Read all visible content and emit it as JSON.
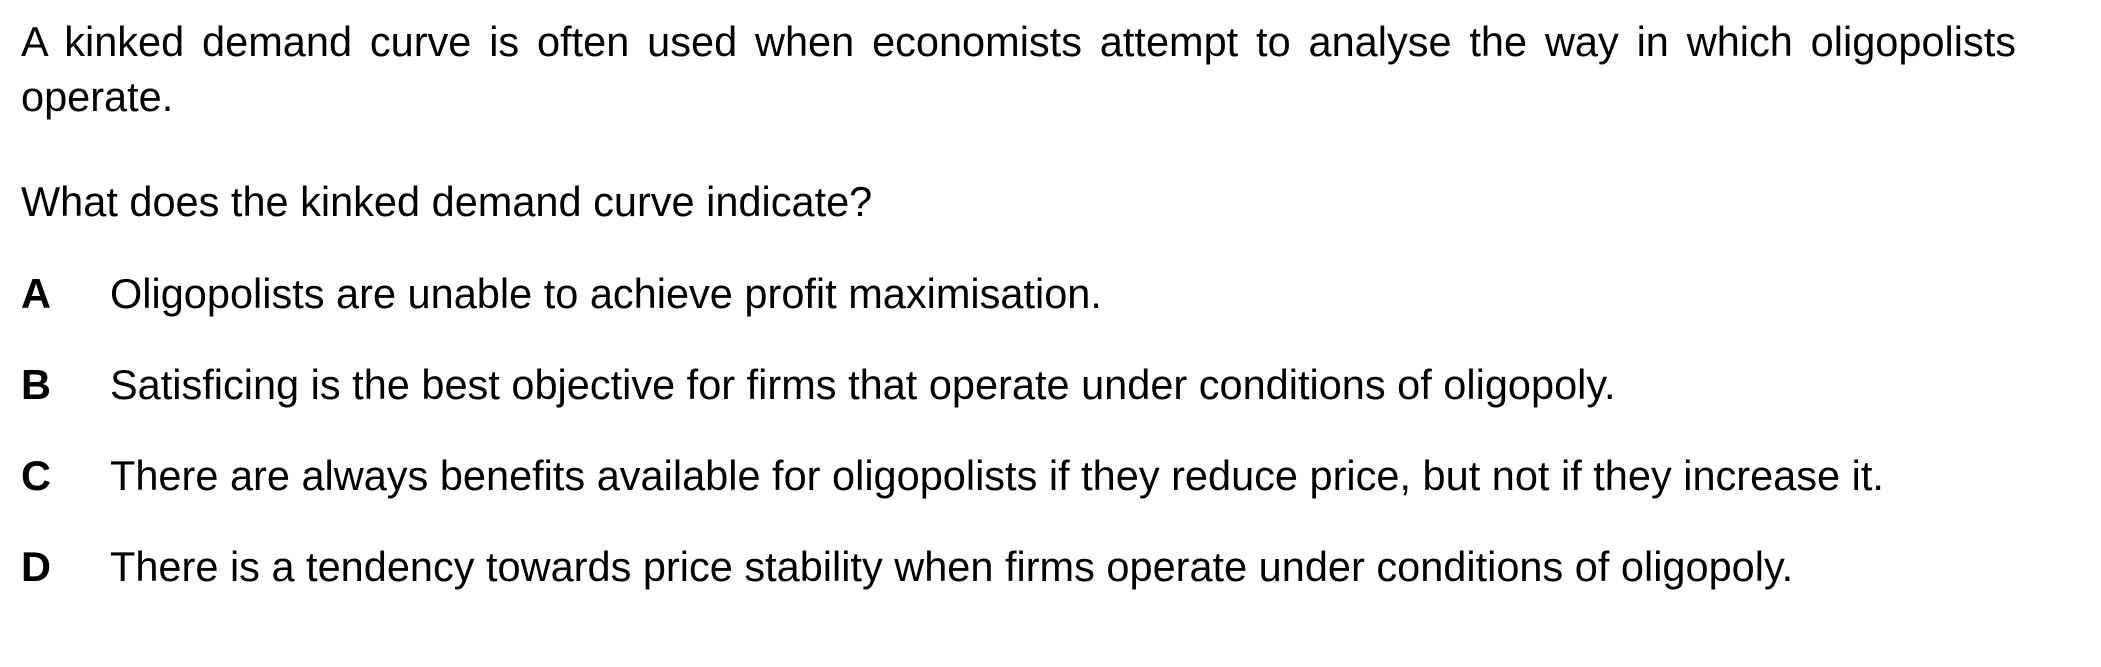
{
  "intro": "A kinked demand curve is often used when economists attempt to analyse the way in which oligopolists operate.",
  "question": "What does the kinked demand curve indicate?",
  "options": [
    {
      "letter": "A",
      "text": "Oligopolists are unable to achieve profit maximisation."
    },
    {
      "letter": "B",
      "text": "Satisficing is the best objective for firms that operate under conditions of oligopoly."
    },
    {
      "letter": "C",
      "text": "There are always benefits available for oligopolists if they reduce price, but not if they increase it."
    },
    {
      "letter": "D",
      "text": "There is a tendency towards price stability when firms operate under conditions of oligopoly."
    }
  ]
}
